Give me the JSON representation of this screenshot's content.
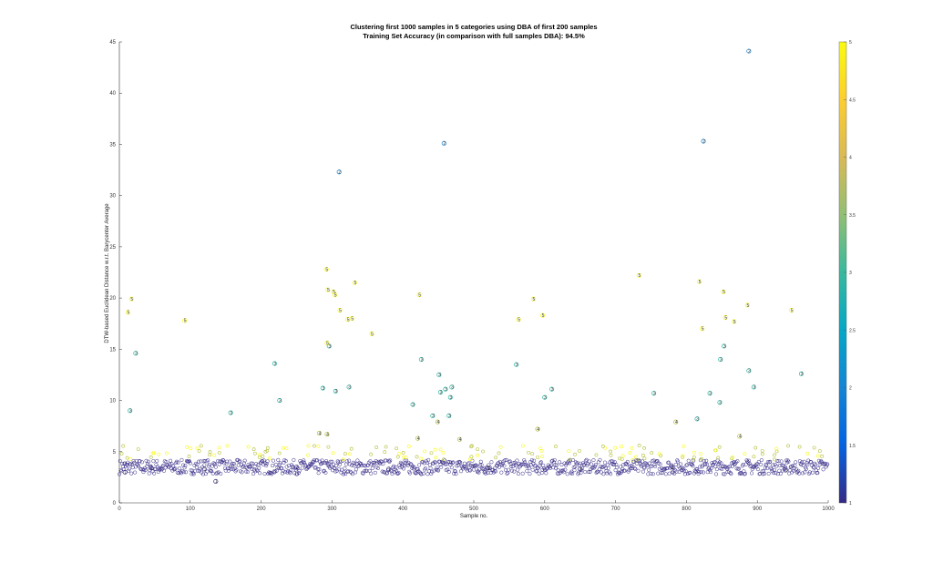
{
  "chart_data": {
    "type": "scatter",
    "title": "Clustering first 1000 samples in 5 categories using DBA of first 200 samples",
    "subtitle": "Training Set Accuracy (in comparison with full samples DBA): 94.5%",
    "xlabel": "Sample no.",
    "ylabel": "DTW-based Euclidean Distance w.r.t. Barycenter Average",
    "xlim": [
      0,
      1000
    ],
    "ylim": [
      0,
      45
    ],
    "xticks": [
      0,
      100,
      200,
      300,
      400,
      500,
      600,
      700,
      800,
      900,
      1000
    ],
    "yticks": [
      0,
      5,
      10,
      15,
      20,
      25,
      30,
      35,
      40,
      45
    ],
    "colorbar": {
      "limits": [
        1,
        5
      ],
      "ticks": [
        1,
        1.5,
        2,
        2.5,
        3,
        3.5,
        4,
        4.5,
        5
      ],
      "colormap": "parula"
    },
    "colors": {
      "c1": "#352a87",
      "c2": "#1384d4",
      "c3": "#28b8a3",
      "c4": "#b3be38",
      "c5": "#f9fb0e"
    },
    "background_band": {
      "x_range": [
        0,
        1000
      ],
      "y_range": [
        2.8,
        4.2
      ],
      "category": 1
    },
    "points": [
      {
        "x": 8,
        "y": 3.0,
        "c": 1
      },
      {
        "x": 136,
        "y": 2.1,
        "c": 1
      },
      {
        "x": 45,
        "y": 3.4,
        "c": 1
      },
      {
        "x": 120,
        "y": 3.3,
        "c": 1
      },
      {
        "x": 250,
        "y": 3.5,
        "c": 1
      },
      {
        "x": 380,
        "y": 3.3,
        "c": 1
      },
      {
        "x": 520,
        "y": 3.4,
        "c": 1
      },
      {
        "x": 650,
        "y": 3.3,
        "c": 1
      },
      {
        "x": 780,
        "y": 3.5,
        "c": 1
      },
      {
        "x": 940,
        "y": 3.2,
        "c": 1
      },
      {
        "x": 310,
        "y": 32.3,
        "c": 2
      },
      {
        "x": 458,
        "y": 35.1,
        "c": 2
      },
      {
        "x": 824,
        "y": 35.3,
        "c": 2
      },
      {
        "x": 888,
        "y": 44.1,
        "c": 2
      },
      {
        "x": 15,
        "y": 9.0,
        "c": 3
      },
      {
        "x": 23,
        "y": 14.6,
        "c": 3
      },
      {
        "x": 157,
        "y": 8.8,
        "c": 3
      },
      {
        "x": 219,
        "y": 13.6,
        "c": 3
      },
      {
        "x": 226,
        "y": 10.0,
        "c": 3
      },
      {
        "x": 287,
        "y": 11.2,
        "c": 3
      },
      {
        "x": 296,
        "y": 15.3,
        "c": 3
      },
      {
        "x": 305,
        "y": 10.9,
        "c": 3
      },
      {
        "x": 324,
        "y": 11.3,
        "c": 3
      },
      {
        "x": 414,
        "y": 9.6,
        "c": 3
      },
      {
        "x": 426,
        "y": 14.0,
        "c": 3
      },
      {
        "x": 442,
        "y": 8.5,
        "c": 3
      },
      {
        "x": 451,
        "y": 12.5,
        "c": 3
      },
      {
        "x": 453,
        "y": 10.8,
        "c": 3
      },
      {
        "x": 460,
        "y": 11.1,
        "c": 3
      },
      {
        "x": 465,
        "y": 8.5,
        "c": 3
      },
      {
        "x": 467,
        "y": 10.3,
        "c": 3
      },
      {
        "x": 469,
        "y": 11.3,
        "c": 3
      },
      {
        "x": 560,
        "y": 13.5,
        "c": 3
      },
      {
        "x": 600,
        "y": 10.3,
        "c": 3
      },
      {
        "x": 610,
        "y": 11.1,
        "c": 3
      },
      {
        "x": 754,
        "y": 10.7,
        "c": 3
      },
      {
        "x": 815,
        "y": 8.2,
        "c": 3
      },
      {
        "x": 833,
        "y": 10.7,
        "c": 3
      },
      {
        "x": 847,
        "y": 9.8,
        "c": 3
      },
      {
        "x": 848,
        "y": 14.0,
        "c": 3
      },
      {
        "x": 853,
        "y": 15.3,
        "c": 3
      },
      {
        "x": 888,
        "y": 12.9,
        "c": 3
      },
      {
        "x": 895,
        "y": 11.3,
        "c": 3
      },
      {
        "x": 962,
        "y": 12.6,
        "c": 3
      },
      {
        "x": 282,
        "y": 6.8,
        "c": 4
      },
      {
        "x": 293,
        "y": 6.7,
        "c": 4
      },
      {
        "x": 421,
        "y": 6.3,
        "c": 4
      },
      {
        "x": 449,
        "y": 7.9,
        "c": 4
      },
      {
        "x": 590,
        "y": 7.2,
        "c": 4
      },
      {
        "x": 785,
        "y": 7.9,
        "c": 4
      },
      {
        "x": 875,
        "y": 6.5,
        "c": 4
      },
      {
        "x": 480,
        "y": 6.2,
        "c": 4
      },
      {
        "x": 12,
        "y": 18.6,
        "c": 5
      },
      {
        "x": 17,
        "y": 19.9,
        "c": 5
      },
      {
        "x": 92,
        "y": 17.8,
        "c": 5
      },
      {
        "x": 292,
        "y": 22.8,
        "c": 5
      },
      {
        "x": 294,
        "y": 20.8,
        "c": 5
      },
      {
        "x": 293,
        "y": 15.6,
        "c": 5
      },
      {
        "x": 302,
        "y": 20.6,
        "c": 5
      },
      {
        "x": 304,
        "y": 20.3,
        "c": 5
      },
      {
        "x": 311,
        "y": 18.8,
        "c": 5
      },
      {
        "x": 322,
        "y": 17.9,
        "c": 5
      },
      {
        "x": 328,
        "y": 18.0,
        "c": 5
      },
      {
        "x": 332,
        "y": 21.5,
        "c": 5
      },
      {
        "x": 356,
        "y": 16.5,
        "c": 5
      },
      {
        "x": 423,
        "y": 20.3,
        "c": 5
      },
      {
        "x": 563,
        "y": 17.9,
        "c": 5
      },
      {
        "x": 584,
        "y": 19.9,
        "c": 5
      },
      {
        "x": 597,
        "y": 18.3,
        "c": 5
      },
      {
        "x": 733,
        "y": 22.2,
        "c": 5
      },
      {
        "x": 818,
        "y": 21.6,
        "c": 5
      },
      {
        "x": 822,
        "y": 17.0,
        "c": 5
      },
      {
        "x": 852,
        "y": 20.6,
        "c": 5
      },
      {
        "x": 855,
        "y": 18.1,
        "c": 5
      },
      {
        "x": 867,
        "y": 17.7,
        "c": 5
      },
      {
        "x": 886,
        "y": 19.3,
        "c": 5
      },
      {
        "x": 948,
        "y": 18.8,
        "c": 5
      }
    ]
  }
}
